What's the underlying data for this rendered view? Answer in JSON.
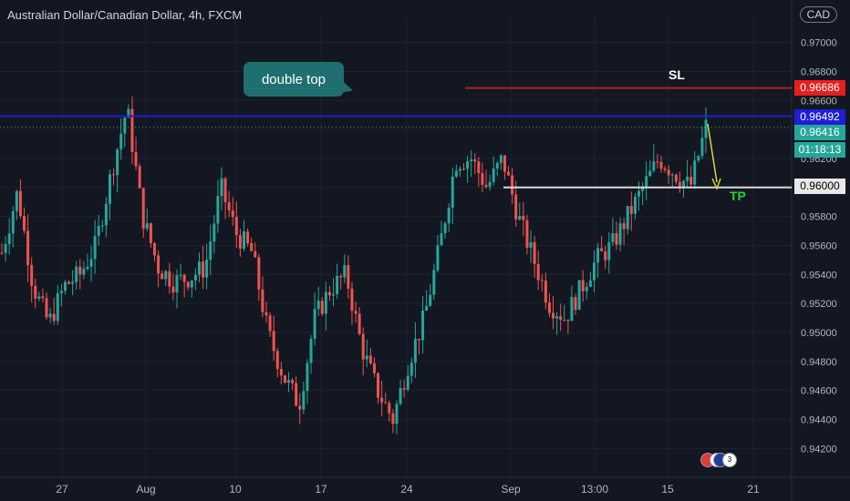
{
  "header": {
    "symbol_title": "Australian Dollar/Canadian Dollar, 4h, FXCM",
    "currency_badge": "CAD"
  },
  "annotations": {
    "callout_text": "double top",
    "sl_label": "SL",
    "tp_label": "TP"
  },
  "price_tags": {
    "sl": "0.96686",
    "resistance": "0.96492",
    "last": "0.96416",
    "countdown": "01:18:13",
    "tp": "0.96000"
  },
  "event_badges": {
    "count_a": "11",
    "count_b": "3"
  },
  "colors": {
    "background": "#131722",
    "up": "#26a69a",
    "down": "#ef5350",
    "sl_line": "#b22222",
    "resistance_line": "#1e1ed6",
    "tp_line": "#d9d9d9",
    "arrow": "#e0d33a"
  },
  "chart_data": {
    "type": "candlestick",
    "title": "Australian Dollar/Canadian Dollar, 4h, FXCM",
    "y_axis_ticks": [
      "0.97000",
      "0.96800",
      "0.96600",
      "0.96400",
      "0.96200",
      "0.96000",
      "0.95800",
      "0.95600",
      "0.95400",
      "0.95200",
      "0.95000",
      "0.94800",
      "0.94600",
      "0.94400",
      "0.94200"
    ],
    "x_axis_ticks": [
      "27",
      "Aug",
      "10",
      "17",
      "24",
      "Sep",
      "13:00",
      "15",
      "21"
    ],
    "ylim": [
      0.9412,
      0.9718
    ],
    "series": [
      {
        "values": [
          0.9555,
          0.9597,
          0.9532,
          0.9506,
          0.9532,
          0.954,
          0.956,
          0.961,
          0.9655,
          0.958,
          0.9545,
          0.9535,
          0.9538,
          0.9545,
          0.96,
          0.9568,
          0.9555,
          0.95,
          0.947,
          0.945,
          0.951,
          0.953,
          0.954,
          0.949,
          0.946,
          0.944,
          0.948,
          0.951,
          0.956,
          0.9618,
          0.962,
          0.96,
          0.962,
          0.958,
          0.955,
          0.952,
          0.951,
          0.953,
          0.955,
          0.956,
          0.958,
          0.96,
          0.962,
          0.961,
          0.96,
          0.9642
        ]
      }
    ],
    "levels": [
      {
        "value": 0.96686
      },
      {
        "value": 0.96492
      },
      {
        "value": 0.96
      }
    ]
  }
}
